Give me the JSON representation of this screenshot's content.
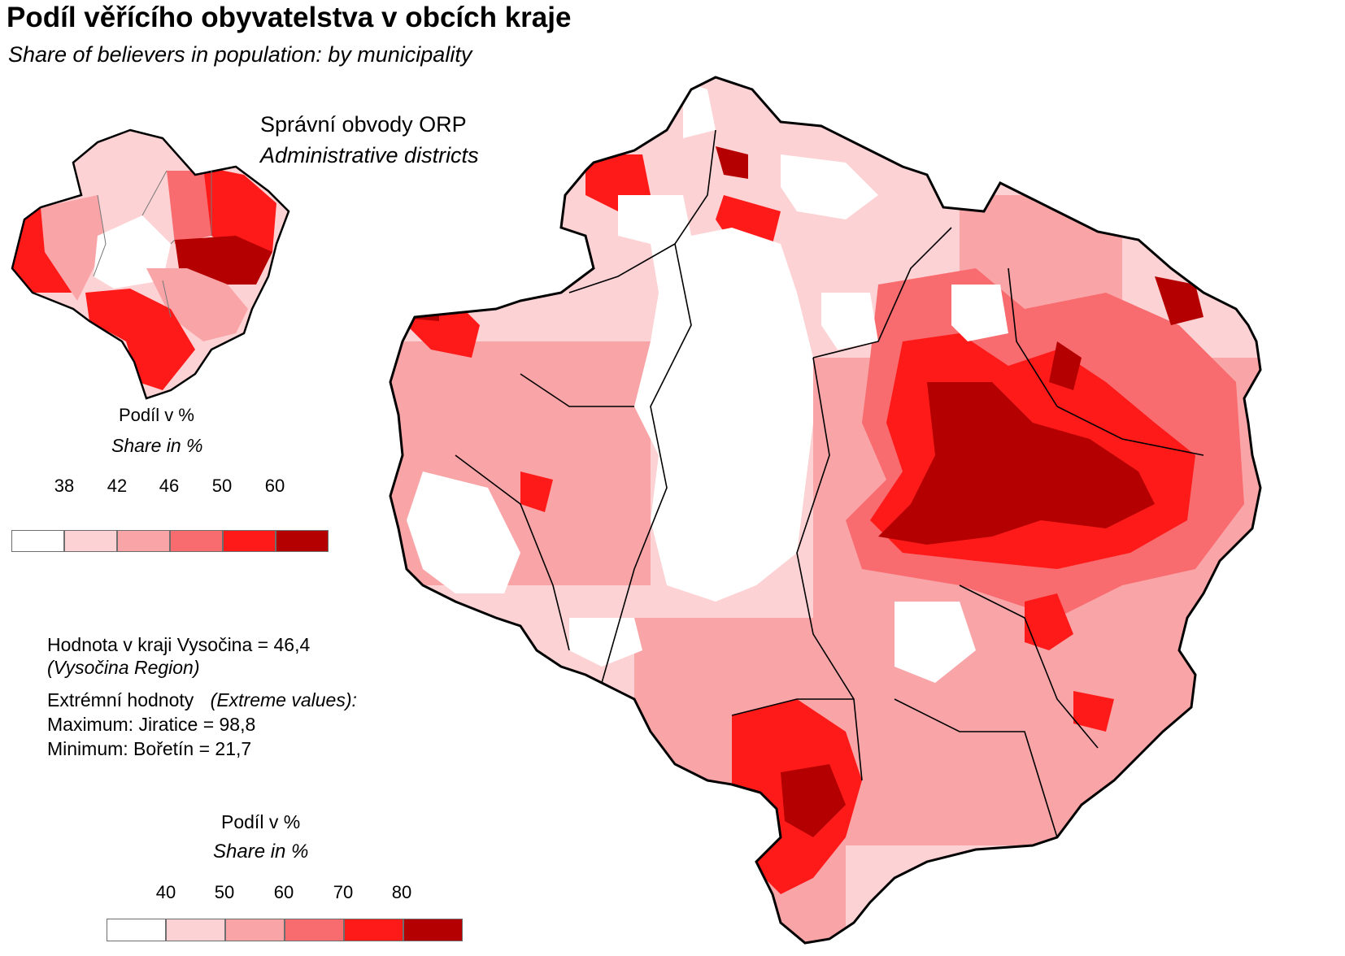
{
  "title": "Podíl věřícího obyvatelstva v obcích kraje",
  "subtitle": "Share of believers in population: by municipality",
  "inset": {
    "label_cz": "Správní obvody  ORP",
    "label_en": "Administrative districts"
  },
  "legend_small": {
    "title_cz": "Podíl v %",
    "title_en": "Share in %",
    "ticks": [
      "38",
      "42",
      "46",
      "50",
      "60"
    ],
    "colors": [
      "#ffffff",
      "#fdd2d4",
      "#f9a5a8",
      "#f86b6e",
      "#ff1a1a",
      "#b40000"
    ]
  },
  "legend_large": {
    "title_cz": "Podíl v %",
    "title_en": "Share in %",
    "ticks": [
      "40",
      "50",
      "60",
      "70",
      "80"
    ],
    "colors": [
      "#ffffff",
      "#fdd2d4",
      "#f9a5a8",
      "#f86b6e",
      "#ff1a1a",
      "#b40000"
    ]
  },
  "stats": {
    "region_value": "Hodnota v kraji Vysočina = 46,4",
    "region_en": "(Vysočina Region)",
    "extreme_cz": "Extrémní hodnoty",
    "extreme_en": "(Extreme values):",
    "maximum": "Maximum: Jiratice = 98,8",
    "minimum": "Minimum: Bořetín = 21,7"
  }
}
